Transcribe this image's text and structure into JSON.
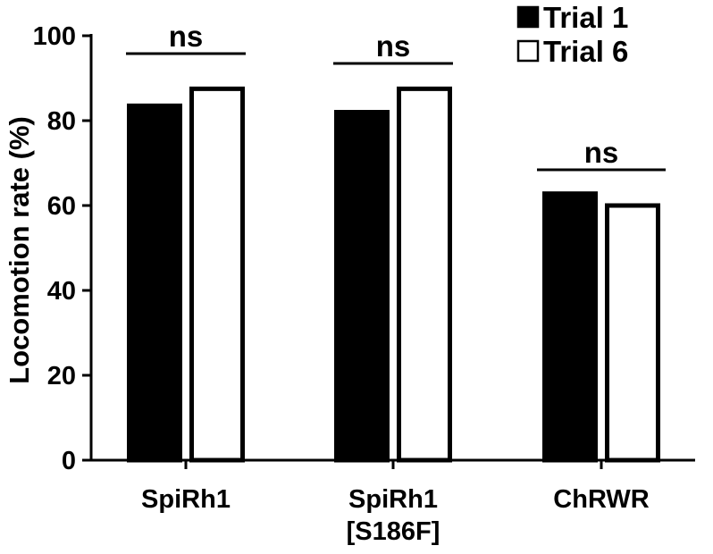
{
  "chart_data": {
    "type": "bar",
    "categories": [
      [
        "SpiRh1"
      ],
      [
        "SpiRh1",
        "[S186F]"
      ],
      [
        "ChRWR"
      ]
    ],
    "series": [
      {
        "name": "Trial 1",
        "fill": "#000000",
        "values": [
          83.5,
          82.0,
          62.8
        ]
      },
      {
        "name": "Trial 6",
        "fill": "#ffffff",
        "values": [
          87.5,
          87.5,
          60.0
        ]
      }
    ],
    "xlabel": "",
    "ylabel": "Locomotion rate (%)",
    "ylim": [
      0,
      100
    ],
    "yticks": [
      0,
      20,
      40,
      60,
      80,
      100
    ],
    "grid": false,
    "legend_position": "top-right",
    "annotations": [
      {
        "text": "ns",
        "category_index": 0
      },
      {
        "text": "ns",
        "category_index": 1
      },
      {
        "text": "ns",
        "category_index": 2
      }
    ]
  }
}
